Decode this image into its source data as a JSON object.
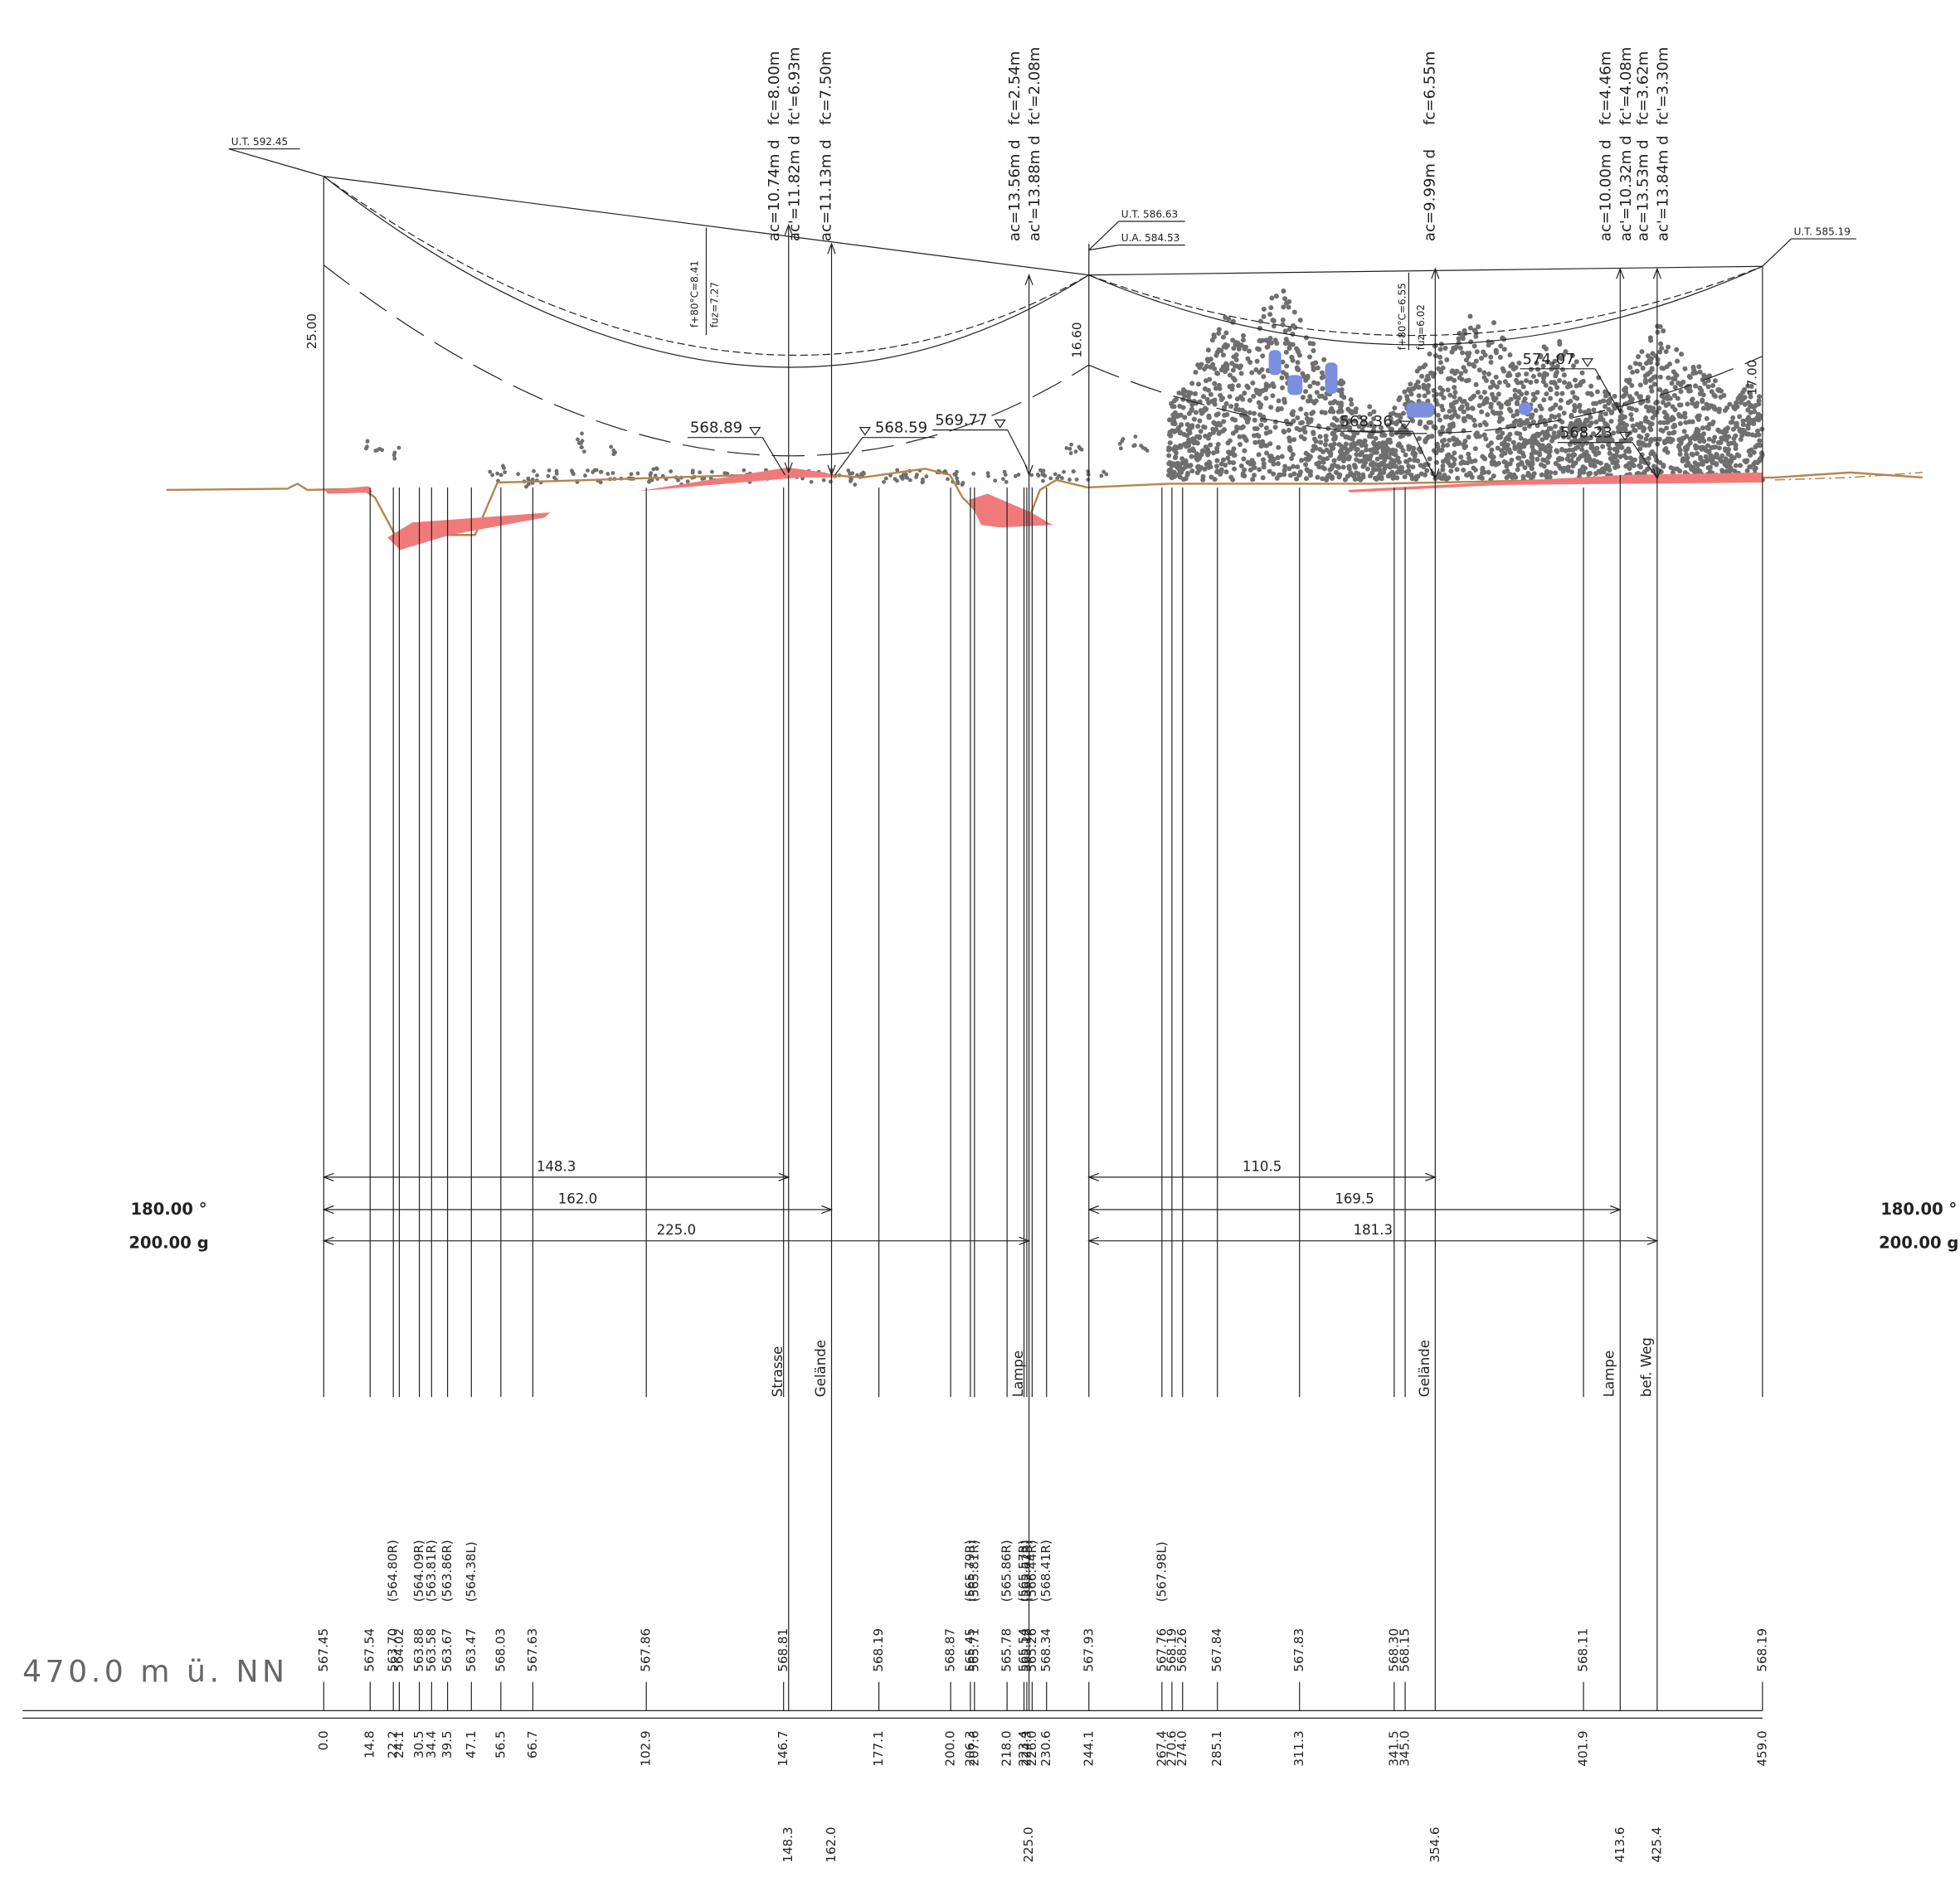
{
  "elevation_reference": "470.0 m ü. NN",
  "angles": {
    "left": [
      "180.00 °",
      "200.00 g"
    ],
    "right": [
      "180.00 °",
      "200.00 g"
    ]
  },
  "towers": [
    {
      "labels": [
        "U.T. 592.45"
      ],
      "height": "25.00"
    },
    {
      "labels": [
        "U.T. 586.63",
        "U.A. 584.53"
      ],
      "height": "16.60"
    },
    {
      "labels": [
        "U.T. 585.19"
      ],
      "height": "17.00"
    }
  ],
  "stations": [
    {
      "station": "0.0",
      "elevation": "567.45"
    },
    {
      "station": "14.8",
      "elevation": "567.54"
    },
    {
      "station": "22.2",
      "elevation": "563.70",
      "offset_elevation": "(564.80R)"
    },
    {
      "station": "24.1",
      "elevation": "564.02"
    },
    {
      "station": "30.5",
      "elevation": "563.88",
      "offset_elevation": "(564.09R)"
    },
    {
      "station": "34.4",
      "elevation": "563.58",
      "offset_elevation": "(563.81R)"
    },
    {
      "station": "39.5",
      "elevation": "563.67",
      "offset_elevation": "(563.86R)"
    },
    {
      "station": "47.1",
      "elevation": "563.47",
      "offset_elevation": "(564.38L)"
    },
    {
      "station": "56.5",
      "elevation": "568.03"
    },
    {
      "station": "66.7",
      "elevation": "567.63"
    },
    {
      "station": "102.9",
      "elevation": "567.86"
    },
    {
      "station": "146.7",
      "elevation": "568.81"
    },
    {
      "station": "177.1",
      "elevation": "568.19"
    },
    {
      "station": "200.0",
      "elevation": "568.87"
    },
    {
      "station": "206.3",
      "elevation": "565.45",
      "offset_elevation": "(565.79R)"
    },
    {
      "station": "207.6",
      "elevation": "565.71",
      "offset_elevation": "(565.81R)"
    },
    {
      "station": "218.0",
      "elevation": "565.78",
      "offset_elevation": "(565.86R)"
    },
    {
      "station": "223.4",
      "elevation": "565.54",
      "offset_elevation": "(565.57R)"
    },
    {
      "station": "224.3",
      "elevation": "565.18",
      "offset_elevation": "(565.62R)"
    },
    {
      "station": "226.0",
      "elevation": "565.26",
      "offset_elevation": "(566.44R)"
    },
    {
      "station": "230.6",
      "elevation": "568.34",
      "offset_elevation": "(568.41R)"
    },
    {
      "station": "244.1",
      "elevation": "567.93"
    },
    {
      "station": "267.4",
      "elevation": "567.76",
      "offset_elevation": "(567.98L)"
    },
    {
      "station": "270.6",
      "elevation": "568.19"
    },
    {
      "station": "274.0",
      "elevation": "568.26"
    },
    {
      "station": "285.1",
      "elevation": "567.84"
    },
    {
      "station": "311.3",
      "elevation": "567.83"
    },
    {
      "station": "341.5",
      "elevation": "568.30"
    },
    {
      "station": "345.0",
      "elevation": "568.15"
    },
    {
      "station": "401.9",
      "elevation": "568.11"
    },
    {
      "station": "459.0",
      "elevation": "568.19"
    }
  ],
  "crossings": [
    {
      "station": "148.3",
      "label": "Strasse",
      "ac": [
        "ac=10.74m d",
        "ac'=11.82m d"
      ],
      "fc": [
        "fc=8.00m",
        "fc'=6.93m"
      ]
    },
    {
      "station": "162.0",
      "label": "Gelände",
      "ac": [
        "ac=11.13m d"
      ],
      "fc": [
        "fc=7.50m"
      ]
    },
    {
      "station": "225.0",
      "label": "Lampe",
      "ac": [
        "ac=13.56m d",
        "ac'=13.88m d"
      ],
      "fc": [
        "fc=2.54m",
        "fc'=2.08m"
      ]
    },
    {
      "station": "354.6",
      "label": "Gelände",
      "ac": [
        "ac=9.99m d"
      ],
      "fc": [
        "fc=6.55m"
      ]
    },
    {
      "station": "413.6",
      "label": "Lampe",
      "ac": [
        "ac=10.00m d",
        "ac'=10.32m d"
      ],
      "fc": [
        "fc=4.46m",
        "fc'=4.08m"
      ]
    },
    {
      "station": "425.4",
      "label": "bef. Weg",
      "ac": [
        "ac=13.53m d",
        "ac'=13.84m d"
      ],
      "fc": [
        "fc=3.62m",
        "fc'=3.30m"
      ]
    }
  ],
  "dimensions": {
    "left": [
      "148.3",
      "162.0",
      "225.0"
    ],
    "right": [
      "110.5",
      "169.5",
      "181.3"
    ]
  },
  "sag_labels": [
    [
      "f+80°C=8.41",
      "fuz=7.27"
    ],
    [
      "f+80°C=6.55",
      "fuz=6.02"
    ]
  ],
  "level_marks": [
    "568.89",
    "568.59",
    "569.77",
    "574.07",
    "568.36",
    "568.23"
  ]
}
